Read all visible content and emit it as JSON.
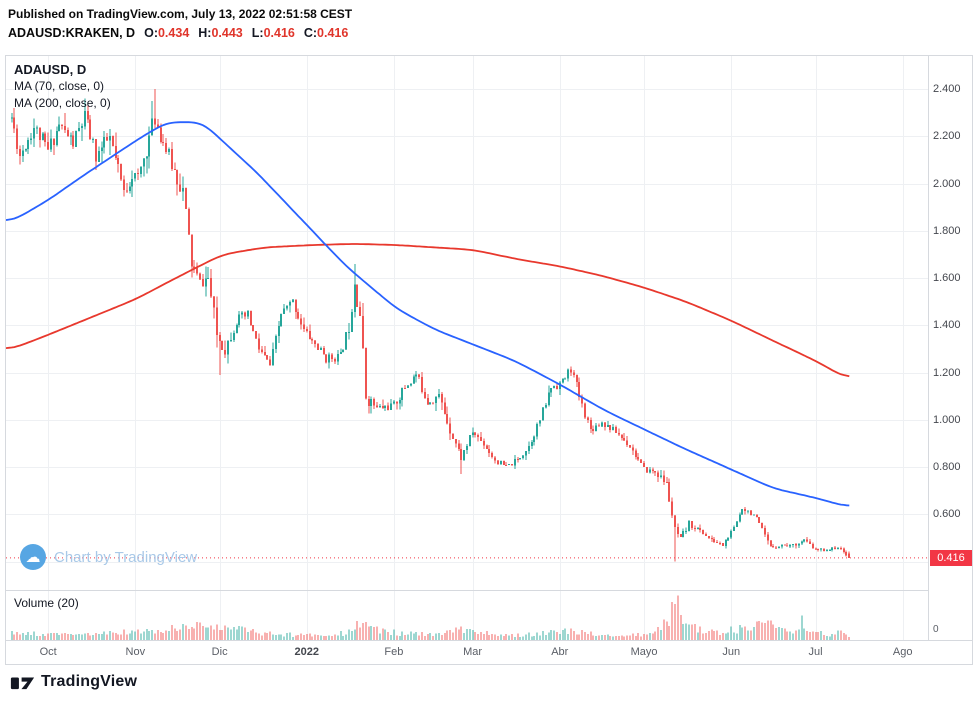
{
  "header": {
    "published_line": "Published on TradingView.com, July 13, 2022 02:51:58 CEST",
    "symbol": "ADAUSD:KRAKEN, D",
    "ohlc": [
      {
        "label": "O:",
        "value": "0.434"
      },
      {
        "label": "H:",
        "value": "0.443"
      },
      {
        "label": "L:",
        "value": "0.416"
      },
      {
        "label": "C:",
        "value": "0.416"
      }
    ]
  },
  "legend": {
    "title": "ADAUSD, D",
    "ma_fast_label": "MA (70, close, 0)",
    "ma_slow_label": "MA (200, close, 0)"
  },
  "watermark": {
    "text": "Chart by TradingView"
  },
  "volume_pane": {
    "label": "Volume (20)",
    "zero_label": "0"
  },
  "footer": {
    "brand": "TradingView"
  },
  "colors": {
    "up": "#26a69a",
    "down": "#ef5350",
    "ma_fast": "#2962ff",
    "ma_slow": "#e8382d",
    "grid": "#eef0f3",
    "border": "#d6d9de",
    "axis_text": "#44474e",
    "time_text": "#5a5e66",
    "badge_bg": "#f23645",
    "badge_text": "#ffffff",
    "ohlc_value": "#e0352b",
    "watermark_text": "#a9c9e8",
    "watermark_icon": "#57a6e3",
    "text_dark": "#131722",
    "vol_opacity": 0.45
  },
  "chart_data": {
    "type": "candlestick",
    "symbol": "ADAUSD",
    "exchange": "KRAKEN",
    "interval": "D",
    "title": "ADAUSD:KRAKEN, D",
    "last": {
      "open": 0.434,
      "high": 0.443,
      "low": 0.416,
      "close": 0.416
    },
    "last_price_label": "0.416",
    "price_axis": {
      "min": 0.28,
      "max": 2.54,
      "ticks": [
        {
          "label": "2.400",
          "value": 2.4
        },
        {
          "label": "2.200",
          "value": 2.2
        },
        {
          "label": "2.000",
          "value": 2.0
        },
        {
          "label": "1.800",
          "value": 1.8
        },
        {
          "label": "1.600",
          "value": 1.6
        },
        {
          "label": "1.400",
          "value": 1.4
        },
        {
          "label": "1.200",
          "value": 1.2
        },
        {
          "label": "1.000",
          "value": 1.0
        },
        {
          "label": "0.800",
          "value": 0.8
        },
        {
          "label": "0.600",
          "value": 0.6
        }
      ]
    },
    "grid_prices": [
      0.4,
      0.6,
      0.8,
      1.0,
      1.2,
      1.4,
      1.6,
      1.8,
      2.0,
      2.2,
      2.4
    ],
    "time_axis": {
      "start_date": "2021-09-18",
      "end_date": "2022-07-13",
      "ticks": [
        {
          "label": "Oct",
          "day": 13
        },
        {
          "label": "Nov",
          "day": 44
        },
        {
          "label": "Dic",
          "day": 74
        },
        {
          "label": "2022",
          "day": 105,
          "year": true
        },
        {
          "label": "Feb",
          "day": 136
        },
        {
          "label": "Mar",
          "day": 164
        },
        {
          "label": "Abr",
          "day": 195
        },
        {
          "label": "Mayo",
          "day": 225
        },
        {
          "label": "Jun",
          "day": 256
        },
        {
          "label": "Jul",
          "day": 286
        },
        {
          "label": "Ago",
          "day": 317
        }
      ]
    },
    "day_domain": [
      -2,
      326
    ],
    "days": 298,
    "seed": 11,
    "base_volatility": 0.014,
    "close_anchors": [
      [
        0,
        2.28
      ],
      [
        3,
        2.12
      ],
      [
        8,
        2.24
      ],
      [
        13,
        2.14
      ],
      [
        17,
        2.25
      ],
      [
        22,
        2.17
      ],
      [
        26,
        2.28
      ],
      [
        30,
        2.12
      ],
      [
        35,
        2.19
      ],
      [
        40,
        1.96
      ],
      [
        43,
        2.04
      ],
      [
        45,
        2.02
      ],
      [
        48,
        2.15
      ],
      [
        51,
        2.28
      ],
      [
        53,
        2.21
      ],
      [
        57,
        2.08
      ],
      [
        61,
        1.97
      ],
      [
        64,
        1.66
      ],
      [
        67,
        1.58
      ],
      [
        70,
        1.6
      ],
      [
        73,
        1.36
      ],
      [
        76,
        1.3
      ],
      [
        80,
        1.42
      ],
      [
        84,
        1.44
      ],
      [
        88,
        1.3
      ],
      [
        92,
        1.23
      ],
      [
        96,
        1.45
      ],
      [
        100,
        1.5
      ],
      [
        104,
        1.38
      ],
      [
        108,
        1.32
      ],
      [
        112,
        1.26
      ],
      [
        117,
        1.27
      ],
      [
        120,
        1.4
      ],
      [
        122,
        1.6
      ],
      [
        124,
        1.45
      ],
      [
        126,
        1.1
      ],
      [
        130,
        1.05
      ],
      [
        136,
        1.06
      ],
      [
        140,
        1.14
      ],
      [
        144,
        1.19
      ],
      [
        148,
        1.08
      ],
      [
        152,
        1.1
      ],
      [
        156,
        0.96
      ],
      [
        160,
        0.84
      ],
      [
        164,
        0.95
      ],
      [
        168,
        0.9
      ],
      [
        172,
        0.83
      ],
      [
        176,
        0.8
      ],
      [
        180,
        0.83
      ],
      [
        184,
        0.89
      ],
      [
        188,
        1.0
      ],
      [
        192,
        1.14
      ],
      [
        196,
        1.16
      ],
      [
        199,
        1.22
      ],
      [
        203,
        1.06
      ],
      [
        206,
        0.96
      ],
      [
        210,
        0.99
      ],
      [
        215,
        0.95
      ],
      [
        220,
        0.89
      ],
      [
        225,
        0.79
      ],
      [
        229,
        0.78
      ],
      [
        233,
        0.73
      ],
      [
        236,
        0.53
      ],
      [
        238,
        0.49
      ],
      [
        241,
        0.56
      ],
      [
        245,
        0.53
      ],
      [
        249,
        0.49
      ],
      [
        253,
        0.47
      ],
      [
        257,
        0.54
      ],
      [
        260,
        0.63
      ],
      [
        264,
        0.6
      ],
      [
        267,
        0.53
      ],
      [
        270,
        0.46
      ],
      [
        274,
        0.47
      ],
      [
        278,
        0.47
      ],
      [
        282,
        0.49
      ],
      [
        286,
        0.45
      ],
      [
        290,
        0.45
      ],
      [
        294,
        0.46
      ],
      [
        297,
        0.43
      ],
      [
        298,
        0.416
      ]
    ],
    "ma70_anchors": [
      [
        0,
        1.84
      ],
      [
        13,
        1.93
      ],
      [
        25,
        2.03
      ],
      [
        44,
        2.18
      ],
      [
        55,
        2.26
      ],
      [
        68,
        2.26
      ],
      [
        75,
        2.18
      ],
      [
        87,
        2.05
      ],
      [
        107,
        1.8
      ],
      [
        119,
        1.65
      ],
      [
        137,
        1.47
      ],
      [
        151,
        1.38
      ],
      [
        164,
        1.32
      ],
      [
        179,
        1.25
      ],
      [
        195,
        1.15
      ],
      [
        211,
        1.04
      ],
      [
        225,
        0.96
      ],
      [
        239,
        0.88
      ],
      [
        256,
        0.79
      ],
      [
        271,
        0.71
      ],
      [
        286,
        0.67
      ],
      [
        298,
        0.63
      ]
    ],
    "ma200_anchors": [
      [
        0,
        1.3
      ],
      [
        13,
        1.36
      ],
      [
        44,
        1.51
      ],
      [
        60,
        1.61
      ],
      [
        75,
        1.7
      ],
      [
        90,
        1.73
      ],
      [
        107,
        1.74
      ],
      [
        122,
        1.745
      ],
      [
        137,
        1.74
      ],
      [
        164,
        1.72
      ],
      [
        180,
        1.68
      ],
      [
        195,
        1.65
      ],
      [
        210,
        1.61
      ],
      [
        225,
        1.56
      ],
      [
        240,
        1.5
      ],
      [
        256,
        1.42
      ],
      [
        270,
        1.34
      ],
      [
        286,
        1.25
      ],
      [
        298,
        1.17
      ]
    ],
    "volume_anchors": [
      [
        0,
        0.18
      ],
      [
        20,
        0.13
      ],
      [
        40,
        0.2
      ],
      [
        51,
        0.22
      ],
      [
        64,
        0.35
      ],
      [
        74,
        0.4
      ],
      [
        84,
        0.22
      ],
      [
        95,
        0.15
      ],
      [
        105,
        0.13
      ],
      [
        119,
        0.18
      ],
      [
        122,
        0.35
      ],
      [
        126,
        0.45
      ],
      [
        131,
        0.22
      ],
      [
        140,
        0.17
      ],
      [
        152,
        0.13
      ],
      [
        159,
        0.3
      ],
      [
        165,
        0.18
      ],
      [
        180,
        0.13
      ],
      [
        190,
        0.2
      ],
      [
        199,
        0.22
      ],
      [
        210,
        0.13
      ],
      [
        220,
        0.12
      ],
      [
        228,
        0.16
      ],
      [
        234,
        0.5
      ],
      [
        236,
        1.0
      ],
      [
        238,
        0.72
      ],
      [
        241,
        0.45
      ],
      [
        245,
        0.26
      ],
      [
        250,
        0.2
      ],
      [
        257,
        0.3
      ],
      [
        262,
        0.24
      ],
      [
        268,
        0.5
      ],
      [
        272,
        0.28
      ],
      [
        277,
        0.17
      ],
      [
        281,
        0.5
      ],
      [
        284,
        0.24
      ],
      [
        290,
        0.14
      ],
      [
        295,
        0.2
      ],
      [
        298,
        0.1
      ]
    ],
    "volatility_anchors": [
      [
        0,
        1
      ],
      [
        40,
        1.3
      ],
      [
        44,
        1
      ],
      [
        50,
        1.5
      ],
      [
        55,
        1.1
      ],
      [
        63,
        1.7
      ],
      [
        66,
        1.2
      ],
      [
        72,
        1.8
      ],
      [
        78,
        1.4
      ],
      [
        86,
        1.1
      ],
      [
        100,
        1
      ],
      [
        119,
        1.1
      ],
      [
        121,
        2.2
      ],
      [
        126,
        2.3
      ],
      [
        130,
        1.2
      ],
      [
        158,
        1.6
      ],
      [
        163,
        1.1
      ],
      [
        197,
        1.3
      ],
      [
        201,
        1.4
      ],
      [
        206,
        1.1
      ],
      [
        225,
        1
      ],
      [
        233,
        1.5
      ],
      [
        236,
        2.8
      ],
      [
        239,
        2.2
      ],
      [
        243,
        1.4
      ],
      [
        250,
        1
      ],
      [
        258,
        1.3
      ],
      [
        268,
        1.7
      ],
      [
        273,
        1
      ],
      [
        281,
        1.2
      ],
      [
        290,
        0.9
      ],
      [
        298,
        0.7
      ]
    ],
    "wick_highs": [
      [
        26,
        2.36
      ],
      [
        51,
        2.4
      ],
      [
        122,
        1.66
      ]
    ],
    "wick_lows": [
      [
        74,
        1.19
      ],
      [
        160,
        0.77
      ],
      [
        236,
        0.4
      ]
    ]
  }
}
